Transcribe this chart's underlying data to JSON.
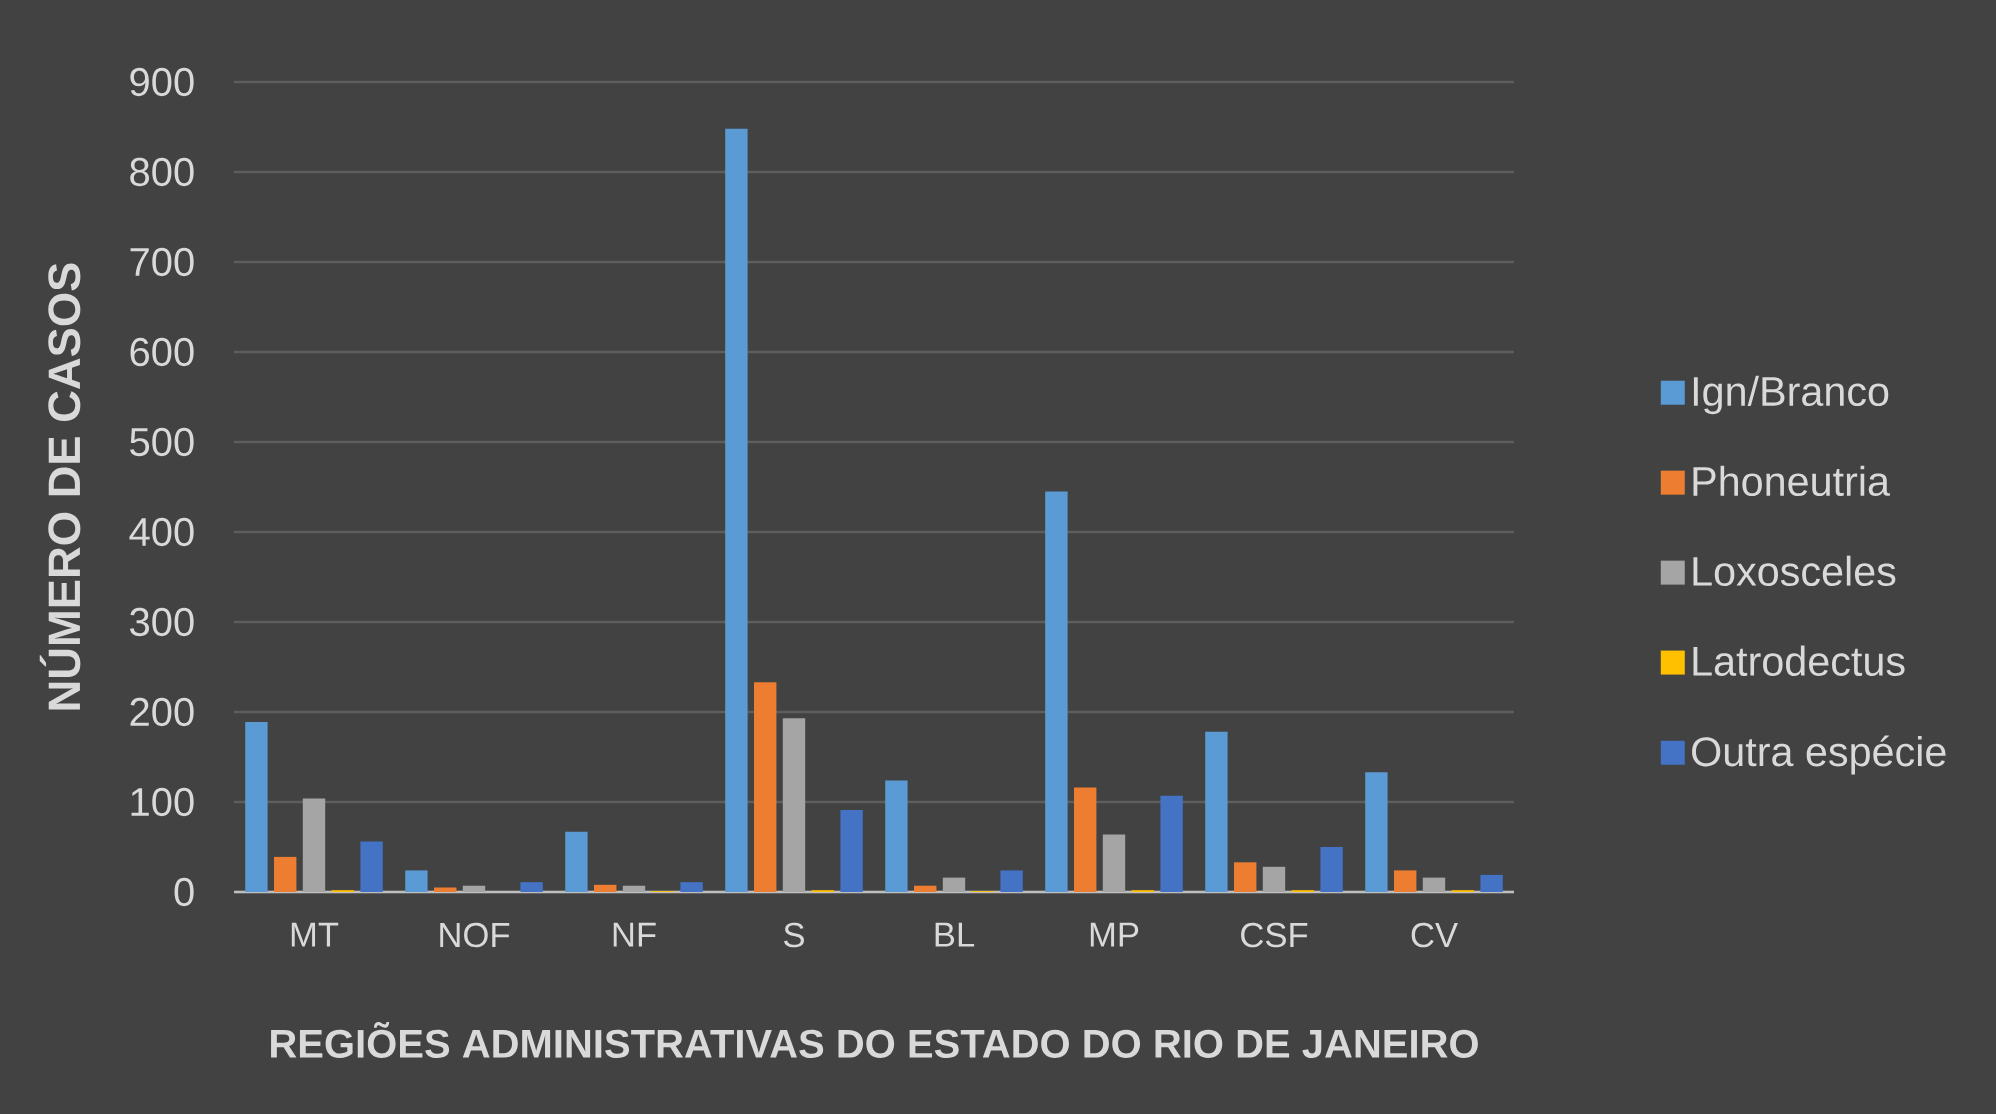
{
  "chart_data": {
    "type": "bar",
    "xlabel": "REGIÕES ADMINISTRATIVAS DO ESTADO DO RIO DE JANEIRO",
    "ylabel": "NÚMERO DE CASOS",
    "categories": [
      "MT",
      "NOF",
      "NF",
      "S",
      "BL",
      "MP",
      "CSF",
      "CV"
    ],
    "series": [
      {
        "name": "Ign/Branco",
        "color": "#5b9bd5",
        "values": [
          189,
          24,
          67,
          848,
          124,
          445,
          178,
          133
        ]
      },
      {
        "name": "Phoneutria",
        "color": "#ed7d31",
        "values": [
          39,
          5,
          8,
          233,
          7,
          116,
          33,
          24
        ]
      },
      {
        "name": "Loxosceles",
        "color": "#a5a5a5",
        "values": [
          104,
          7,
          7,
          193,
          16,
          64,
          28,
          16
        ]
      },
      {
        "name": "Latrodectus",
        "color": "#ffc000",
        "values": [
          2,
          0,
          1,
          2,
          1,
          2,
          2,
          2
        ]
      },
      {
        "name": "Outra espécie",
        "color": "#4472c4",
        "values": [
          56,
          11,
          11,
          91,
          24,
          107,
          50,
          19
        ]
      }
    ],
    "ylim": [
      0,
      900
    ],
    "yticks": [
      0,
      100,
      200,
      300,
      400,
      500,
      600,
      700,
      800,
      900
    ],
    "grid": "y",
    "legend": "right"
  }
}
